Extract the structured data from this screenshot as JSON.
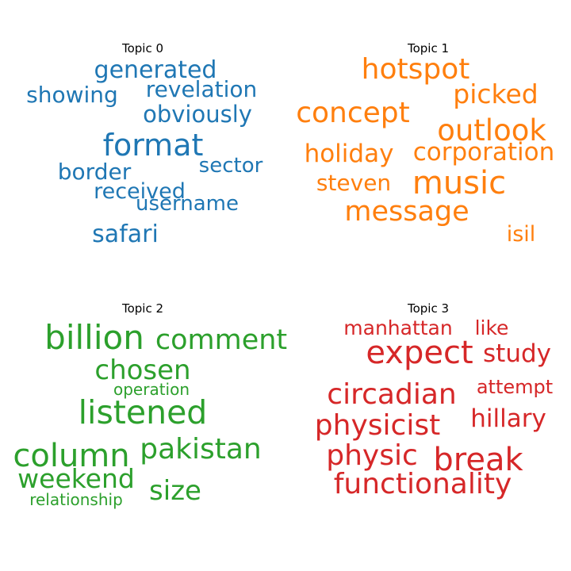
{
  "chart_data": [
    {
      "type": "wordcloud",
      "title": "Topic 0",
      "color": "#1f77b4",
      "words": [
        "generated",
        "revelation",
        "showing",
        "obviously",
        "format",
        "sector",
        "border",
        "received",
        "username",
        "safari"
      ]
    },
    {
      "type": "wordcloud",
      "title": "Topic 1",
      "color": "#ff7f0e",
      "words": [
        "hotspot",
        "picked",
        "concept",
        "outlook",
        "holiday",
        "corporation",
        "steven",
        "music",
        "message",
        "isil"
      ]
    },
    {
      "type": "wordcloud",
      "title": "Topic 2",
      "color": "#2ca02c",
      "words": [
        "billion",
        "comment",
        "chosen",
        "operation",
        "listened",
        "column",
        "pakistan",
        "weekend",
        "size",
        "relationship"
      ]
    },
    {
      "type": "wordcloud",
      "title": "Topic 3",
      "color": "#d62728",
      "words": [
        "manhattan",
        "like",
        "expect",
        "study",
        "attempt",
        "circadian",
        "hillary",
        "physicist",
        "physic",
        "break",
        "functionality"
      ]
    }
  ]
}
